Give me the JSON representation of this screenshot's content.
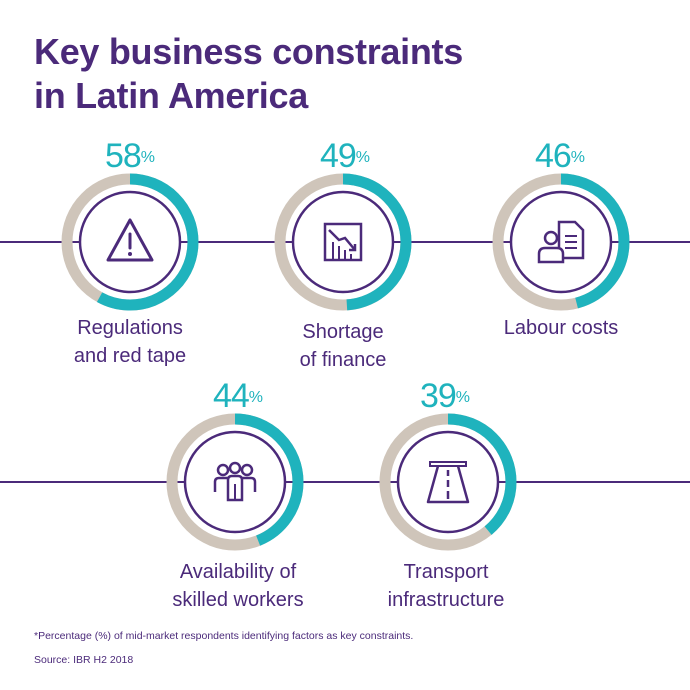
{
  "title": {
    "line1": "Key business constraints",
    "line2": "in Latin America"
  },
  "colors": {
    "purple": "#4b2a7a",
    "teal": "#1fb3bd",
    "ring_base": "#cfc5ba"
  },
  "chart_data": {
    "type": "donut",
    "title": "Key business constraints in Latin America",
    "unit": "%",
    "categories": [
      "Regulations and red tape",
      "Shortage of finance",
      "Labour costs",
      "Availability of skilled workers",
      "Transport infrastructure"
    ],
    "values": [
      58,
      49,
      46,
      44,
      39
    ],
    "items": [
      {
        "value": 58,
        "value_text": "58",
        "label_lines": [
          "Regulations",
          "and red tape"
        ],
        "icon": "warning-icon"
      },
      {
        "value": 49,
        "value_text": "49",
        "label_lines": [
          "Shortage",
          "of finance"
        ],
        "icon": "declining-chart-icon"
      },
      {
        "value": 46,
        "value_text": "46",
        "label_lines": [
          "Labour costs"
        ],
        "icon": "worker-document-icon"
      },
      {
        "value": 44,
        "value_text": "44",
        "label_lines": [
          "Availability of",
          "skilled workers"
        ],
        "icon": "group-of-people-icon"
      },
      {
        "value": 39,
        "value_text": "39",
        "label_lines": [
          "Transport",
          "infrastructure"
        ],
        "icon": "road-icon"
      }
    ]
  },
  "percent_sign": "%",
  "footnote": "*Percentage (%) of mid-market respondents identifying factors as key constraints.",
  "source": "Source: IBR H2 2018"
}
